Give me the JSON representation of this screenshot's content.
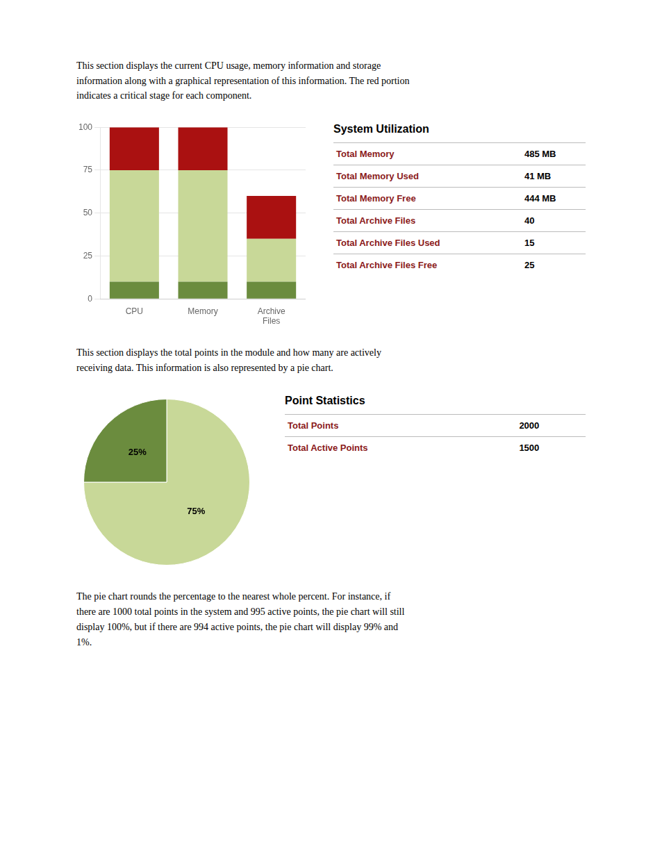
{
  "chart_data": [
    {
      "type": "text",
      "annotations": [
        "This section displays the current CPU usage, memory information and storage\ninformation along with a graphical representation of this information. The red portion\nindicates a critical stage for each component."
      ]
    },
    {
      "type": "bar",
      "stacked": true,
      "categories": [
        "CPU",
        "Memory",
        "Archive\nFiles"
      ],
      "series": [
        {
          "color": "#6b8c3e",
          "values": [
            10,
            10,
            10
          ]
        },
        {
          "color": "#c8d898",
          "values": [
            65,
            65,
            25
          ]
        },
        {
          "color": "#aa1111",
          "values": [
            25,
            25,
            25
          ]
        }
      ],
      "ylim": [
        0,
        100
      ],
      "yticks": [
        0,
        25,
        50,
        75,
        100
      ],
      "grid": true
    },
    {
      "type": "table",
      "title": "System Utilization",
      "annotations": [
        [
          "Total Memory",
          "485 MB"
        ],
        [
          "Total Memory Used",
          "41 MB"
        ],
        [
          "Total Memory Free",
          "444 MB"
        ],
        [
          "Total Archive Files",
          "40"
        ],
        [
          "Total Archive Files Used",
          "15"
        ],
        [
          "Total Archive Files Free",
          "25"
        ]
      ]
    },
    {
      "type": "text",
      "annotations": [
        "This section displays the total points in the module and how many are actively\nreceiving data. This information is also represented by a pie chart."
      ]
    },
    {
      "type": "pie",
      "values": [
        75,
        25
      ],
      "value_labels": [
        "75%",
        "25%"
      ],
      "colors": [
        "#c8d898",
        "#6b8c3e"
      ],
      "data_labels": true
    },
    {
      "type": "table",
      "title": "Point Statistics",
      "annotations": [
        [
          "Total Points",
          "2000"
        ],
        [
          "Total Active Points",
          "1500"
        ]
      ]
    },
    {
      "type": "text",
      "annotations": [
        "The pie chart rounds the percentage to the nearest whole percent. For instance, if\nthere are 1000 total points in the system and 995 active points, the pie chart will still\ndisplay 100%, but if there are 994 active points, the pie chart will display 99% and\n1%."
      ]
    }
  ]
}
